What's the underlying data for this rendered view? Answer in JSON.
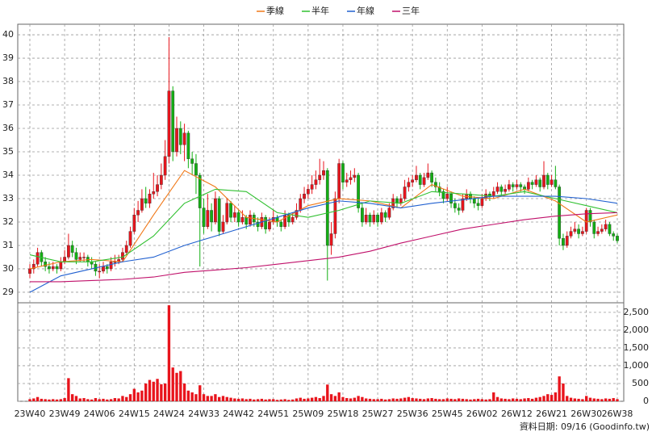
{
  "chart_data": {
    "type": "candlestick",
    "categories": [
      "23W40",
      null,
      null,
      null,
      null,
      null,
      null,
      null,
      null,
      "23W49",
      null,
      null,
      null,
      null,
      null,
      null,
      null,
      null,
      "24W06",
      null,
      null,
      null,
      null,
      null,
      null,
      null,
      null,
      "24W15",
      null,
      null,
      null,
      null,
      null,
      null,
      null,
      null,
      "24W24",
      null,
      null,
      null,
      null,
      null,
      null,
      null,
      null,
      "24W33",
      null,
      null,
      null,
      null,
      null,
      null,
      null,
      null,
      "24W42",
      null,
      null,
      null,
      null,
      null,
      null,
      null,
      null,
      "24W51",
      null,
      null,
      null,
      null,
      null,
      null,
      null,
      null,
      "25W09",
      null,
      null,
      null,
      null,
      null,
      null,
      null,
      null,
      "25W18",
      null,
      null,
      null,
      null,
      null,
      null,
      null,
      null,
      "25W27",
      null,
      null,
      null,
      null,
      null,
      null,
      null,
      null,
      "25W36",
      null,
      null,
      null,
      null,
      null,
      null,
      null,
      null,
      "25W45",
      null,
      null,
      null,
      null,
      null,
      null,
      null,
      null,
      "26W02",
      null,
      null,
      null,
      null,
      null,
      null,
      null,
      null,
      "26W12",
      null,
      null,
      null,
      null,
      null,
      null,
      null,
      null,
      "26W21",
      null,
      null,
      null,
      null,
      null,
      null,
      null,
      null,
      "26W30",
      null,
      null,
      null,
      null,
      null,
      null,
      null,
      "26W38"
    ],
    "ohlc": [
      [
        29.8,
        30.2,
        29.6,
        30.0
      ],
      [
        30.0,
        30.4,
        29.8,
        30.2
      ],
      [
        30.2,
        30.9,
        30.1,
        30.7
      ],
      [
        30.7,
        30.8,
        30.1,
        30.3
      ],
      [
        30.3,
        30.5,
        29.9,
        30.1
      ],
      [
        30.1,
        30.3,
        29.8,
        30.0
      ],
      [
        30.0,
        30.3,
        29.9,
        30.1
      ],
      [
        30.1,
        30.2,
        29.8,
        30.0
      ],
      [
        30.0,
        30.5,
        29.9,
        30.3
      ],
      [
        30.3,
        30.8,
        30.2,
        30.5
      ],
      [
        30.5,
        31.5,
        30.4,
        31.0
      ],
      [
        31.0,
        31.2,
        30.5,
        30.7
      ],
      [
        30.7,
        30.9,
        30.2,
        30.4
      ],
      [
        30.4,
        30.7,
        30.3,
        30.5
      ],
      [
        30.5,
        30.7,
        30.3,
        30.5
      ],
      [
        30.5,
        30.6,
        30.1,
        30.3
      ],
      [
        30.3,
        30.5,
        30.0,
        30.2
      ],
      [
        30.2,
        30.3,
        29.7,
        29.9
      ],
      [
        29.9,
        30.2,
        29.6,
        29.9
      ],
      [
        29.9,
        30.3,
        29.8,
        30.1
      ],
      [
        30.1,
        30.2,
        29.8,
        30.0
      ],
      [
        30.0,
        30.5,
        29.9,
        30.3
      ],
      [
        30.3,
        30.6,
        30.1,
        30.3
      ],
      [
        30.3,
        30.6,
        30.2,
        30.4
      ],
      [
        30.4,
        30.9,
        30.3,
        30.7
      ],
      [
        30.7,
        31.2,
        30.6,
        31.0
      ],
      [
        31.0,
        31.8,
        30.9,
        31.6
      ],
      [
        31.6,
        32.6,
        31.5,
        32.3
      ],
      [
        32.3,
        32.9,
        32.0,
        32.5
      ],
      [
        32.5,
        33.4,
        32.4,
        33.0
      ],
      [
        33.0,
        33.5,
        32.6,
        32.8
      ],
      [
        32.8,
        33.4,
        32.6,
        33.2
      ],
      [
        33.2,
        34.1,
        33.0,
        33.3
      ],
      [
        33.3,
        34.0,
        33.1,
        33.6
      ],
      [
        33.6,
        34.5,
        33.4,
        34.0
      ],
      [
        34.0,
        35.5,
        33.8,
        34.8
      ],
      [
        34.8,
        39.9,
        34.5,
        37.6
      ],
      [
        37.6,
        37.8,
        34.6,
        35.0
      ],
      [
        35.0,
        36.5,
        34.8,
        36.0
      ],
      [
        36.0,
        36.3,
        34.9,
        35.3
      ],
      [
        35.3,
        36.2,
        34.6,
        35.8
      ],
      [
        35.8,
        35.9,
        34.3,
        34.7
      ],
      [
        34.7,
        35.0,
        34.0,
        34.5
      ],
      [
        34.5,
        34.9,
        33.2,
        34.0
      ],
      [
        34.0,
        34.1,
        30.1,
        32.6
      ],
      [
        32.6,
        33.0,
        31.5,
        31.8
      ],
      [
        31.8,
        33.2,
        31.7,
        32.5
      ],
      [
        32.5,
        32.8,
        31.6,
        32.0
      ],
      [
        32.0,
        33.3,
        31.9,
        33.0
      ],
      [
        33.0,
        33.1,
        31.4,
        31.6
      ],
      [
        31.6,
        32.3,
        31.5,
        32.0
      ],
      [
        32.0,
        33.0,
        31.9,
        32.8
      ],
      [
        32.8,
        32.9,
        32.0,
        32.2
      ],
      [
        32.2,
        32.7,
        32.0,
        32.4
      ],
      [
        32.4,
        32.5,
        31.8,
        32.0
      ],
      [
        32.0,
        32.5,
        31.9,
        32.2
      ],
      [
        32.2,
        32.3,
        31.7,
        31.9
      ],
      [
        31.9,
        32.5,
        31.8,
        32.3
      ],
      [
        32.3,
        32.4,
        31.8,
        32.0
      ],
      [
        32.0,
        32.2,
        31.6,
        31.8
      ],
      [
        31.8,
        32.4,
        31.7,
        32.2
      ],
      [
        32.2,
        32.3,
        31.5,
        31.7
      ],
      [
        31.7,
        32.2,
        31.6,
        32.0
      ],
      [
        32.0,
        32.5,
        31.9,
        32.2
      ],
      [
        32.2,
        32.3,
        31.8,
        32.0
      ],
      [
        32.0,
        32.1,
        31.6,
        31.8
      ],
      [
        31.8,
        32.5,
        31.7,
        32.3
      ],
      [
        32.3,
        32.4,
        31.8,
        32.0
      ],
      [
        32.0,
        32.4,
        31.9,
        32.2
      ],
      [
        32.2,
        32.8,
        32.1,
        32.5
      ],
      [
        32.5,
        33.2,
        32.4,
        33.0
      ],
      [
        33.0,
        33.5,
        32.8,
        33.2
      ],
      [
        33.2,
        33.6,
        33.0,
        33.4
      ],
      [
        33.4,
        34.0,
        33.2,
        33.6
      ],
      [
        33.6,
        34.2,
        33.4,
        33.8
      ],
      [
        33.8,
        34.7,
        33.6,
        34.0
      ],
      [
        34.0,
        34.6,
        33.8,
        34.2
      ],
      [
        34.2,
        34.3,
        29.5,
        31.0
      ],
      [
        31.0,
        32.0,
        30.6,
        31.5
      ],
      [
        31.5,
        33.3,
        31.3,
        33.0
      ],
      [
        33.0,
        34.7,
        32.8,
        34.5
      ],
      [
        34.5,
        34.6,
        33.4,
        33.7
      ],
      [
        33.7,
        34.1,
        33.5,
        33.8
      ],
      [
        33.8,
        34.2,
        33.6,
        33.9
      ],
      [
        33.9,
        34.3,
        33.7,
        34.0
      ],
      [
        34.0,
        34.1,
        32.4,
        32.6
      ],
      [
        32.6,
        32.8,
        31.8,
        32.0
      ],
      [
        32.0,
        32.6,
        31.9,
        32.3
      ],
      [
        32.3,
        32.4,
        31.8,
        32.0
      ],
      [
        32.0,
        32.5,
        31.9,
        32.3
      ],
      [
        32.3,
        32.4,
        31.8,
        32.0
      ],
      [
        32.0,
        32.6,
        31.9,
        32.4
      ],
      [
        32.4,
        32.5,
        32.0,
        32.2
      ],
      [
        32.2,
        32.8,
        32.1,
        32.6
      ],
      [
        32.6,
        33.2,
        32.5,
        33.0
      ],
      [
        33.0,
        33.1,
        32.6,
        32.8
      ],
      [
        32.8,
        33.2,
        32.7,
        33.0
      ],
      [
        33.0,
        33.8,
        32.9,
        33.5
      ],
      [
        33.5,
        33.9,
        33.3,
        33.7
      ],
      [
        33.7,
        34.0,
        33.5,
        33.8
      ],
      [
        33.8,
        34.4,
        33.7,
        34.0
      ],
      [
        34.0,
        34.1,
        33.4,
        33.6
      ],
      [
        33.6,
        34.1,
        33.5,
        33.9
      ],
      [
        33.9,
        34.5,
        33.8,
        34.1
      ],
      [
        34.1,
        34.2,
        33.5,
        33.7
      ],
      [
        33.7,
        33.9,
        33.3,
        33.5
      ],
      [
        33.5,
        33.7,
        33.1,
        33.3
      ],
      [
        33.3,
        33.4,
        32.8,
        33.0
      ],
      [
        33.0,
        33.5,
        32.9,
        33.2
      ],
      [
        33.2,
        33.3,
        32.6,
        32.8
      ],
      [
        32.8,
        33.0,
        32.4,
        32.6
      ],
      [
        32.6,
        32.8,
        32.3,
        32.5
      ],
      [
        32.5,
        33.2,
        32.4,
        33.0
      ],
      [
        33.0,
        33.4,
        32.9,
        33.2
      ],
      [
        33.2,
        33.3,
        32.8,
        33.0
      ],
      [
        33.0,
        33.1,
        32.6,
        32.8
      ],
      [
        32.8,
        33.0,
        32.5,
        32.7
      ],
      [
        32.7,
        33.2,
        32.6,
        33.0
      ],
      [
        33.0,
        33.4,
        32.9,
        33.2
      ],
      [
        33.2,
        33.3,
        32.9,
        33.1
      ],
      [
        33.1,
        33.5,
        33.0,
        33.3
      ],
      [
        33.3,
        33.7,
        33.2,
        33.5
      ],
      [
        33.5,
        33.6,
        33.1,
        33.3
      ],
      [
        33.3,
        33.6,
        33.2,
        33.4
      ],
      [
        33.4,
        33.8,
        33.3,
        33.6
      ],
      [
        33.6,
        33.7,
        33.3,
        33.5
      ],
      [
        33.5,
        33.8,
        33.4,
        33.6
      ],
      [
        33.6,
        33.7,
        33.3,
        33.5
      ],
      [
        33.5,
        33.6,
        33.2,
        33.4
      ],
      [
        33.4,
        33.9,
        33.3,
        33.7
      ],
      [
        33.7,
        33.8,
        33.4,
        33.6
      ],
      [
        33.6,
        34.0,
        33.5,
        33.8
      ],
      [
        33.8,
        33.9,
        33.3,
        33.5
      ],
      [
        33.5,
        34.6,
        33.4,
        34.0
      ],
      [
        34.0,
        34.1,
        33.4,
        33.6
      ],
      [
        33.6,
        34.0,
        33.5,
        33.8
      ],
      [
        33.8,
        34.4,
        33.4,
        33.5
      ],
      [
        33.5,
        33.6,
        31.0,
        31.3
      ],
      [
        31.3,
        31.5,
        30.8,
        31.0
      ],
      [
        31.0,
        31.6,
        30.9,
        31.4
      ],
      [
        31.4,
        31.8,
        31.3,
        31.6
      ],
      [
        31.6,
        32.0,
        31.5,
        31.7
      ],
      [
        31.7,
        31.9,
        31.3,
        31.5
      ],
      [
        31.5,
        31.8,
        31.4,
        31.6
      ],
      [
        31.6,
        32.6,
        31.5,
        32.5
      ],
      [
        32.5,
        32.6,
        31.8,
        32.0
      ],
      [
        32.0,
        32.1,
        31.3,
        31.5
      ],
      [
        31.5,
        31.8,
        31.4,
        31.6
      ],
      [
        31.6,
        31.9,
        31.5,
        31.7
      ],
      [
        31.7,
        32.1,
        31.6,
        31.9
      ],
      [
        31.9,
        32.0,
        31.4,
        31.5
      ],
      [
        31.5,
        31.6,
        31.2,
        31.4
      ],
      [
        31.4,
        31.5,
        31.1,
        31.2
      ]
    ],
    "volume": [
      60,
      80,
      120,
      70,
      60,
      50,
      60,
      50,
      60,
      90,
      650,
      200,
      150,
      80,
      90,
      60,
      50,
      90,
      60,
      70,
      50,
      60,
      90,
      80,
      150,
      120,
      200,
      350,
      250,
      300,
      500,
      600,
      550,
      630,
      480,
      500,
      2700,
      950,
      800,
      850,
      500,
      300,
      250,
      200,
      450,
      200,
      150,
      150,
      200,
      120,
      150,
      120,
      100,
      80,
      70,
      80,
      60,
      70,
      50,
      60,
      70,
      50,
      60,
      60,
      40,
      50,
      60,
      40,
      50,
      80,
      100,
      70,
      80,
      100,
      120,
      90,
      150,
      470,
      200,
      150,
      250,
      120,
      90,
      80,
      100,
      150,
      120,
      80,
      70,
      60,
      60,
      70,
      50,
      60,
      80,
      70,
      80,
      100,
      120,
      90,
      80,
      70,
      60,
      80,
      90,
      70,
      60,
      60,
      80,
      70,
      60,
      80,
      70,
      60,
      50,
      60,
      70,
      60,
      50,
      60,
      250,
      120,
      80,
      70,
      60,
      80,
      70,
      60,
      80,
      90,
      70,
      100,
      120,
      150,
      200,
      180,
      250,
      700,
      500,
      150,
      100,
      80,
      70,
      60,
      150,
      100,
      80,
      70,
      60,
      80,
      70,
      90,
      60
    ],
    "up_color": "#e8141c",
    "down_color": "#12b012",
    "volume_color": "#e8141c",
    "ylim": [
      28.55,
      40.45
    ],
    "yticks": [
      29,
      30,
      31,
      32,
      33,
      34,
      35,
      36,
      37,
      38,
      39,
      40
    ],
    "y2lim": [
      0,
      2770
    ],
    "y2ticks": [
      0,
      500,
      {
        "value": 1000,
        "label": "1,000"
      },
      {
        "value": 1500,
        "label": "1,500"
      },
      {
        "value": 2000,
        "label": "2,000"
      },
      {
        "value": 2500,
        "label": "2,500"
      }
    ],
    "series": [
      {
        "name": "季線",
        "color": "#f07818",
        "x": [
          0,
          8,
          16,
          24,
          32,
          40,
          48,
          56,
          64,
          72,
          80,
          88,
          96,
          104,
          112,
          120,
          128,
          136,
          144,
          152
        ],
        "values": [
          30.0,
          30.3,
          30.4,
          30.3,
          32.3,
          34.2,
          33.5,
          32.2,
          32.0,
          32.7,
          33.0,
          32.9,
          32.6,
          33.6,
          33.1,
          33.0,
          33.4,
          32.9,
          32.0,
          32.3
        ]
      },
      {
        "name": "半年",
        "color": "#30c030",
        "x": [
          0,
          8,
          16,
          24,
          32,
          40,
          48,
          56,
          64,
          72,
          80,
          88,
          96,
          104,
          112,
          120,
          128,
          136,
          144,
          152
        ],
        "values": [
          30.6,
          30.3,
          30.3,
          30.5,
          31.4,
          32.8,
          33.4,
          33.3,
          32.4,
          32.2,
          32.5,
          32.9,
          32.8,
          33.3,
          33.2,
          33.1,
          33.3,
          33.0,
          32.7,
          32.4
        ]
      },
      {
        "name": "年線",
        "color": "#2060d0",
        "x": [
          0,
          8,
          16,
          24,
          32,
          40,
          48,
          56,
          64,
          72,
          80,
          88,
          96,
          104,
          112,
          120,
          128,
          136,
          144,
          152
        ],
        "values": [
          29.0,
          29.7,
          30.0,
          30.3,
          30.5,
          31.0,
          31.4,
          31.8,
          32.2,
          32.6,
          32.9,
          32.8,
          32.6,
          32.8,
          32.95,
          33.1,
          33.1,
          33.1,
          33.0,
          32.8
        ]
      },
      {
        "name": "三年",
        "color": "#c0106a",
        "x": [
          0,
          8,
          16,
          24,
          32,
          40,
          48,
          56,
          64,
          72,
          80,
          88,
          96,
          104,
          112,
          120,
          128,
          136,
          144,
          152
        ],
        "values": [
          29.45,
          29.45,
          29.5,
          29.55,
          29.65,
          29.85,
          29.95,
          30.05,
          30.2,
          30.35,
          30.5,
          30.75,
          31.1,
          31.4,
          31.7,
          31.9,
          32.1,
          32.25,
          32.35,
          32.4
        ]
      }
    ],
    "grid": true,
    "legend": "top",
    "footer": "資料日期: 09/16  (Goodinfo.tw)"
  }
}
